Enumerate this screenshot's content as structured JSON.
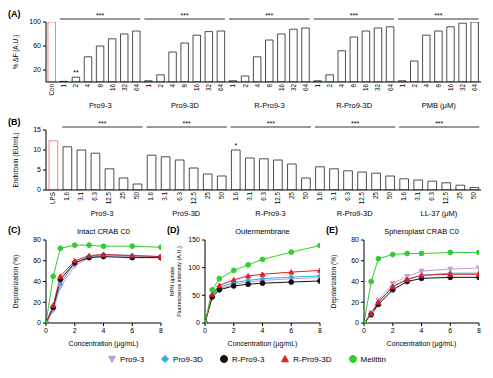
{
  "chart_data": [
    {
      "type": "bar",
      "panel": "(A)",
      "y_label": "% ΔF (A.U.)",
      "ylim": [
        0,
        100
      ],
      "yticks": [
        0,
        20,
        40,
        60,
        80,
        100
      ],
      "color": "#ffffff",
      "control": {
        "name": "Con",
        "value": 100,
        "color": "#e86b6b"
      },
      "groups": [
        {
          "name": "Pro9-3",
          "annotation": "***",
          "categories": [
            "1",
            "2",
            "4",
            "8",
            "16",
            "32",
            "64"
          ],
          "values": [
            1,
            8,
            42,
            60,
            72,
            80,
            85
          ],
          "bar_annotations": [
            null,
            "**",
            null,
            null,
            null,
            null,
            null
          ]
        },
        {
          "name": "Pro9-3D",
          "annotation": "***",
          "categories": [
            "1",
            "2",
            "4",
            "8",
            "16",
            "32",
            "64"
          ],
          "values": [
            2,
            12,
            50,
            65,
            78,
            84,
            85
          ]
        },
        {
          "name": "R-Pro9-3",
          "annotation": "***",
          "categories": [
            "1",
            "2",
            "4",
            "8",
            "16",
            "32",
            "64"
          ],
          "values": [
            2,
            10,
            42,
            70,
            80,
            88,
            90
          ]
        },
        {
          "name": "R-Pro9-3D",
          "annotation": "***",
          "categories": [
            "1",
            "2",
            "4",
            "8",
            "16",
            "32",
            "64"
          ],
          "values": [
            2,
            12,
            52,
            75,
            85,
            90,
            92
          ]
        },
        {
          "name": "PMB (μM)",
          "annotation": "***",
          "categories": [
            "1",
            "2",
            "4",
            "8",
            "16",
            "32",
            "64"
          ],
          "values": [
            2,
            35,
            78,
            85,
            92,
            98,
            100
          ]
        }
      ]
    },
    {
      "type": "bar",
      "panel": "(B)",
      "y_label": "Endotoxin (EU/mL)",
      "ylim": [
        0,
        15
      ],
      "yticks": [
        0,
        5,
        10,
        15
      ],
      "color": "#ffffff",
      "control": {
        "name": "LPS",
        "value": 12.3,
        "color": "#e86b6b"
      },
      "groups": [
        {
          "name": "Pro9-3",
          "annotation": "***",
          "categories": [
            "1.6",
            "3.1",
            "6.3",
            "12.5",
            "25",
            "50"
          ],
          "values": [
            10.8,
            10,
            9.2,
            5.3,
            3,
            1.5
          ]
        },
        {
          "name": "Pro9-3D",
          "annotation": "***",
          "categories": [
            "1.6",
            "3.1",
            "6.3",
            "12.5",
            "25",
            "50"
          ],
          "values": [
            8.7,
            8.3,
            7.5,
            5.5,
            4,
            3.5
          ]
        },
        {
          "name": "R-Pro9-3",
          "annotation": "***",
          "categories": [
            "1.6",
            "3.1",
            "6.3",
            "12.5",
            "25",
            "50"
          ],
          "values": [
            10,
            8,
            7.8,
            7.5,
            6.5,
            3
          ],
          "bar_annotations": [
            "*",
            null,
            null,
            null,
            null,
            null
          ]
        },
        {
          "name": "R-Pro9-3D",
          "annotation": "***",
          "categories": [
            "1.6",
            "3.1",
            "6.3",
            "12.5",
            "25",
            "50"
          ],
          "values": [
            5.8,
            5.3,
            4.8,
            4.5,
            4.2,
            3.5
          ]
        },
        {
          "name": "LL-37 (μM)",
          "annotation": "***",
          "categories": [
            "1.6",
            "3.1",
            "6.3",
            "12.5",
            "25",
            "50"
          ],
          "values": [
            2.8,
            2.5,
            2.2,
            1.8,
            1.2,
            0.6
          ]
        }
      ]
    },
    {
      "type": "line",
      "panel": "(C)",
      "title": "Intact CRAB C0",
      "x_label": "Concentration (μg/mL)",
      "y_label": "Depolarization (%)",
      "legend": "bottom",
      "x": [
        0,
        0.5,
        1,
        2,
        3,
        4,
        6,
        8
      ],
      "xlim": [
        0,
        8
      ],
      "xticks": [
        0,
        2,
        4,
        6,
        8
      ],
      "ylim": [
        0,
        80
      ],
      "yticks": [
        0,
        20,
        40,
        60,
        80
      ],
      "series": [
        {
          "name": "Pro9-3",
          "color": "#c49ad8",
          "marker": "triangle-down",
          "values": [
            0,
            12,
            35,
            55,
            63,
            65,
            64,
            64
          ]
        },
        {
          "name": "Pro9-3D",
          "color": "#2fb0e0",
          "marker": "diamond",
          "values": [
            0,
            14,
            38,
            58,
            64,
            66,
            65,
            64
          ]
        },
        {
          "name": "R-Pro9-3",
          "color": "#111111",
          "marker": "circle",
          "values": [
            0,
            15,
            42,
            58,
            63,
            64,
            63,
            63
          ]
        },
        {
          "name": "R-Pro9-3D",
          "color": "#e02020",
          "marker": "triangle",
          "values": [
            0,
            17,
            45,
            60,
            65,
            66,
            65,
            64
          ]
        },
        {
          "name": "Melittin",
          "color": "#33cc33",
          "marker": "circle",
          "values": [
            0,
            45,
            72,
            75,
            75,
            74,
            74,
            73
          ]
        }
      ]
    },
    {
      "type": "line",
      "panel": "(D)",
      "title": "Outermembrane",
      "x_label": "Concentration (μg/mL)",
      "y_label": [
        "NPN uptake",
        "Fluorescence intensity (A.U.)"
      ],
      "x": [
        0,
        0.5,
        1,
        2,
        3,
        4,
        6,
        8
      ],
      "xlim": [
        0,
        8
      ],
      "xticks": [
        0,
        2,
        4,
        6,
        8
      ],
      "ylim": [
        0,
        150
      ],
      "yticks": [
        0,
        50,
        100,
        150
      ],
      "series": [
        {
          "name": "Pro9-3",
          "color": "#c49ad8",
          "marker": "triangle-down",
          "values": [
            0,
            48,
            62,
            70,
            74,
            77,
            80,
            82
          ]
        },
        {
          "name": "Pro9-3D",
          "color": "#2fb0e0",
          "marker": "diamond",
          "values": [
            0,
            50,
            65,
            73,
            77,
            80,
            83,
            85
          ]
        },
        {
          "name": "R-Pro9-3",
          "color": "#111111",
          "marker": "circle",
          "values": [
            0,
            47,
            60,
            67,
            70,
            72,
            74,
            76
          ]
        },
        {
          "name": "R-Pro9-3D",
          "color": "#e02020",
          "marker": "triangle",
          "values": [
            0,
            52,
            68,
            78,
            85,
            88,
            92,
            95
          ]
        },
        {
          "name": "Melittin",
          "color": "#33cc33",
          "marker": "circle",
          "values": [
            0,
            60,
            80,
            95,
            105,
            115,
            128,
            140
          ]
        }
      ]
    },
    {
      "type": "line",
      "panel": "(E)",
      "title": "Spheroplast CRAB C0",
      "x_label": "Concentration (μg/mL)",
      "y_label": "Depolarization (%)",
      "x": [
        0,
        0.5,
        1,
        2,
        3,
        4,
        6,
        8
      ],
      "xlim": [
        0,
        8
      ],
      "xticks": [
        0,
        2,
        4,
        6,
        8
      ],
      "ylim": [
        0,
        80
      ],
      "yticks": [
        0,
        20,
        40,
        60,
        80
      ],
      "series": [
        {
          "name": "Pro9-3",
          "color": "#c49ad8",
          "marker": "triangle-down",
          "values": [
            0,
            10,
            22,
            38,
            45,
            50,
            52,
            53
          ]
        },
        {
          "name": "Pro9-3D",
          "color": "#2fb0e0",
          "marker": "diamond",
          "values": [
            0,
            9,
            20,
            35,
            42,
            46,
            48,
            48
          ]
        },
        {
          "name": "R-Pro9-3",
          "color": "#111111",
          "marker": "circle",
          "values": [
            0,
            8,
            18,
            32,
            40,
            43,
            44,
            44
          ]
        },
        {
          "name": "R-Pro9-3D",
          "color": "#e02020",
          "marker": "triangle",
          "values": [
            0,
            9,
            20,
            35,
            42,
            46,
            47,
            47
          ]
        },
        {
          "name": "Melittin",
          "color": "#33cc33",
          "marker": "circle",
          "values": [
            0,
            40,
            62,
            66,
            67,
            67,
            68,
            68
          ]
        }
      ]
    }
  ]
}
